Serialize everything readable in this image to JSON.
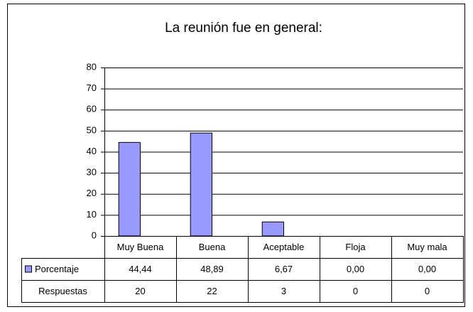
{
  "chart_data": {
    "type": "bar",
    "title": "La reunión fue en general:",
    "categories": [
      "Muy Buena",
      "Buena",
      "Aceptable",
      "Floja",
      "Muy mala"
    ],
    "series": [
      {
        "name": "Porcentaje",
        "color": "#9999ff",
        "values": [
          44.44,
          48.89,
          6.67,
          0,
          0
        ],
        "value_labels": [
          "44,44",
          "48,89",
          "6,67",
          "0,00",
          "0,00"
        ]
      },
      {
        "name": "Respuestas",
        "values": [
          20,
          22,
          3,
          0,
          0
        ]
      }
    ],
    "ylim": [
      0,
      80
    ],
    "yticks": [
      0,
      10,
      20,
      30,
      40,
      50,
      60,
      70,
      80
    ],
    "grid": true
  }
}
